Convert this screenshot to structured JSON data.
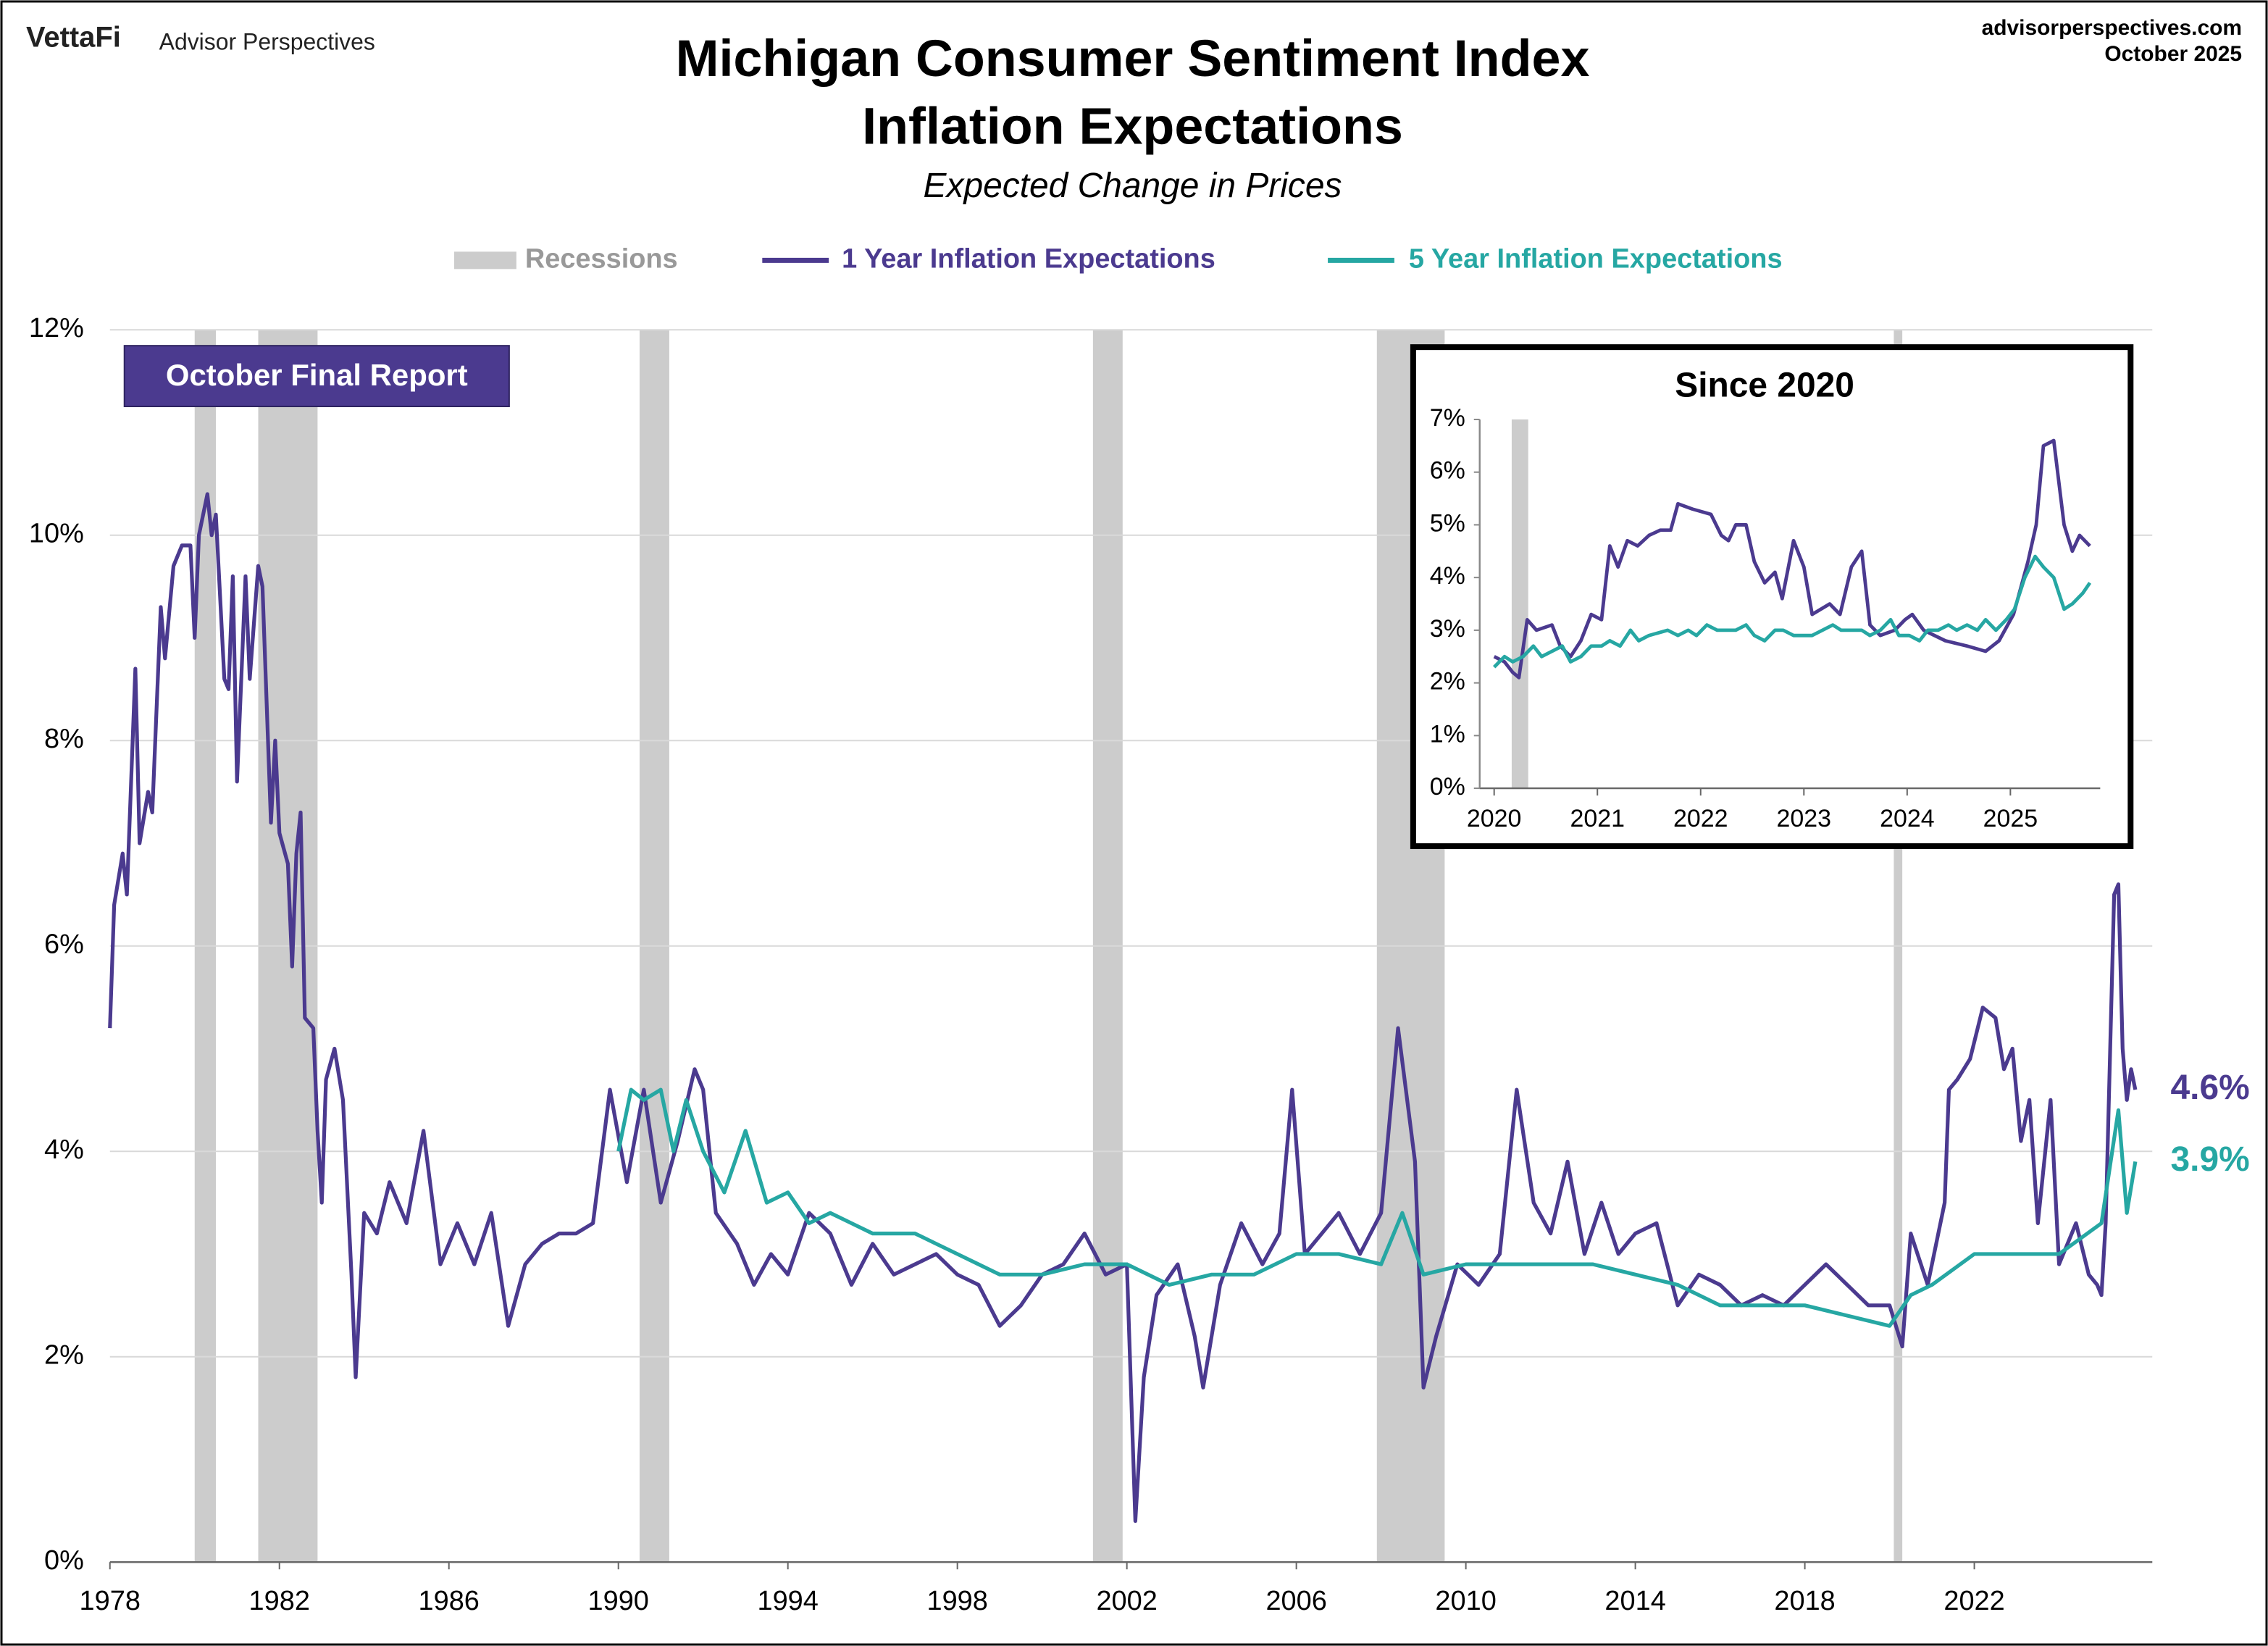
{
  "header": {
    "brand": "VettaFi",
    "publisher": "Advisor Perspectives",
    "site": "advisorperspectives.com",
    "date": "October 2025"
  },
  "chart_data": [
    {
      "type": "line",
      "title": [
        "Michigan Consumer Sentiment Index",
        "Inflation Expectations"
      ],
      "subtitle": "Expected Change in Prices",
      "annotation": "October Final Report",
      "xlim": [
        1978,
        2026.2
      ],
      "xticks": [
        1978,
        1982,
        1986,
        1990,
        1994,
        1998,
        2002,
        2006,
        2010,
        2014,
        2018,
        2022
      ],
      "ylim": [
        0,
        12
      ],
      "yticks": [
        {
          "value": 0,
          "label": "0%"
        },
        {
          "value": 2,
          "label": "2%"
        },
        {
          "value": 4,
          "label": "4%"
        },
        {
          "value": 6,
          "label": "6%"
        },
        {
          "value": 8,
          "label": "8%"
        },
        {
          "value": 10,
          "label": "10%"
        },
        {
          "value": 12,
          "label": "12%"
        }
      ],
      "grid": true,
      "recessions": {
        "name": "Recessions",
        "color": "#cccccc",
        "spans": [
          [
            1980.0,
            1980.5
          ],
          [
            1981.5,
            1982.9
          ],
          [
            1990.5,
            1991.2
          ],
          [
            2001.2,
            2001.9
          ],
          [
            2007.9,
            2009.5
          ],
          [
            2020.1,
            2020.3
          ]
        ]
      },
      "series": [
        {
          "name": "1 Year Inflation Expectations",
          "color": "#4b3a8f",
          "last_label": "4.6%",
          "x": [
            1978.0,
            1978.1,
            1978.3,
            1978.4,
            1978.6,
            1978.7,
            1978.9,
            1979.0,
            1979.2,
            1979.3,
            1979.5,
            1979.7,
            1979.9,
            1980.0,
            1980.1,
            1980.3,
            1980.4,
            1980.5,
            1980.7,
            1980.8,
            1980.9,
            1981.0,
            1981.2,
            1981.3,
            1981.5,
            1981.6,
            1981.8,
            1981.9,
            1982.0,
            1982.2,
            1982.3,
            1982.4,
            1982.5,
            1982.6,
            1982.8,
            1982.9,
            1983.0,
            1983.1,
            1983.3,
            1983.5,
            1983.7,
            1983.8,
            1984.0,
            1984.3,
            1984.6,
            1985.0,
            1985.4,
            1985.8,
            1986.2,
            1986.6,
            1987.0,
            1987.4,
            1987.8,
            1988.2,
            1988.6,
            1989.0,
            1989.4,
            1989.8,
            1990.2,
            1990.6,
            1991.0,
            1991.4,
            1991.8,
            1992.0,
            1992.3,
            1992.8,
            1993.2,
            1993.6,
            1994.0,
            1994.5,
            1995.0,
            1995.5,
            1996.0,
            1996.5,
            1997.0,
            1997.5,
            1998.0,
            1998.5,
            1999.0,
            1999.5,
            2000.0,
            2000.5,
            2001.0,
            2001.5,
            2002.0,
            2002.2,
            2002.4,
            2002.7,
            2003.2,
            2003.6,
            2003.8,
            2004.2,
            2004.7,
            2005.2,
            2005.6,
            2005.9,
            2006.2,
            2006.6,
            2007.0,
            2007.5,
            2008.0,
            2008.4,
            2008.8,
            2009.0,
            2009.3,
            2009.8,
            2010.3,
            2010.8,
            2011.2,
            2011.6,
            2012.0,
            2012.4,
            2012.8,
            2013.2,
            2013.6,
            2014.0,
            2014.5,
            2015.0,
            2015.5,
            2016.0,
            2016.5,
            2017.0,
            2017.5,
            2018.0,
            2018.5,
            2019.0,
            2019.5,
            2020.0,
            2020.3,
            2020.5,
            2020.9,
            2021.3,
            2021.4,
            2021.6,
            2021.9,
            2022.2,
            2022.5,
            2022.7,
            2022.9,
            2023.1,
            2023.3,
            2023.5,
            2023.8,
            2024.0,
            2024.4,
            2024.7,
            2024.9,
            2025.0,
            2025.1,
            2025.3,
            2025.4,
            2025.5,
            2025.6,
            2025.7,
            2025.8
          ],
          "values": [
            5.2,
            6.4,
            6.9,
            6.5,
            8.7,
            7.0,
            7.5,
            7.3,
            9.3,
            8.8,
            9.7,
            9.9,
            9.9,
            9.0,
            10.0,
            10.4,
            10.0,
            10.2,
            8.6,
            8.5,
            9.6,
            7.6,
            9.6,
            8.6,
            9.7,
            9.5,
            7.2,
            8.0,
            7.1,
            6.8,
            5.8,
            6.9,
            7.3,
            5.3,
            5.2,
            4.2,
            3.5,
            4.7,
            5.0,
            4.5,
            2.8,
            1.8,
            3.4,
            3.2,
            3.7,
            3.3,
            4.2,
            2.9,
            3.3,
            2.9,
            3.4,
            2.3,
            2.9,
            3.1,
            3.2,
            3.2,
            3.3,
            4.6,
            3.7,
            4.6,
            3.5,
            4.1,
            4.8,
            4.6,
            3.4,
            3.1,
            2.7,
            3.0,
            2.8,
            3.4,
            3.2,
            2.7,
            3.1,
            2.8,
            2.9,
            3.0,
            2.8,
            2.7,
            2.3,
            2.5,
            2.8,
            2.9,
            3.2,
            2.8,
            2.9,
            0.4,
            1.8,
            2.6,
            2.9,
            2.2,
            1.7,
            2.7,
            3.3,
            2.9,
            3.2,
            4.6,
            3.0,
            3.2,
            3.4,
            3.0,
            3.4,
            5.2,
            3.9,
            1.7,
            2.2,
            2.9,
            2.7,
            3.0,
            4.6,
            3.5,
            3.2,
            3.9,
            3.0,
            3.5,
            3.0,
            3.2,
            3.3,
            2.5,
            2.8,
            2.7,
            2.5,
            2.6,
            2.5,
            2.7,
            2.9,
            2.7,
            2.5,
            2.5,
            2.1,
            3.2,
            2.7,
            3.5,
            4.6,
            4.7,
            4.9,
            5.4,
            5.3,
            4.8,
            5.0,
            4.1,
            4.5,
            3.3,
            4.5,
            2.9,
            3.3,
            2.8,
            2.7,
            2.6,
            3.3,
            6.5,
            6.6,
            5.0,
            4.5,
            4.8,
            4.6
          ]
        },
        {
          "name": "5 Year Inflation Expectations",
          "color": "#26a7a3",
          "last_label": "3.9%",
          "x": [
            1990.0,
            1990.3,
            1990.6,
            1991.0,
            1991.3,
            1991.6,
            1992.0,
            1992.5,
            1993.0,
            1993.5,
            1994.0,
            1994.5,
            1995.0,
            1995.5,
            1996.0,
            1997.0,
            1997.5,
            1998.0,
            1998.5,
            1999.0,
            2000.0,
            2001.0,
            2002.0,
            2003.0,
            2004.0,
            2005.0,
            2006.0,
            2007.0,
            2008.0,
            2008.5,
            2009.0,
            2010.0,
            2011.0,
            2012.0,
            2013.0,
            2014.0,
            2015.0,
            2016.0,
            2017.0,
            2018.0,
            2019.0,
            2020.0,
            2020.5,
            2021.0,
            2022.0,
            2023.0,
            2024.0,
            2025.0,
            2025.4,
            2025.6,
            2025.8
          ],
          "values": [
            4.0,
            4.6,
            4.5,
            4.6,
            4.0,
            4.5,
            4.0,
            3.6,
            4.2,
            3.5,
            3.6,
            3.3,
            3.4,
            3.3,
            3.2,
            3.2,
            3.1,
            3.0,
            2.9,
            2.8,
            2.8,
            2.9,
            2.9,
            2.7,
            2.8,
            2.8,
            3.0,
            3.0,
            2.9,
            3.4,
            2.8,
            2.9,
            2.9,
            2.9,
            2.9,
            2.8,
            2.7,
            2.5,
            2.5,
            2.5,
            2.4,
            2.3,
            2.6,
            2.7,
            3.0,
            3.0,
            3.0,
            3.3,
            4.4,
            3.4,
            3.9
          ]
        }
      ]
    },
    {
      "type": "line",
      "title": "Since 2020",
      "xlim": [
        2019.86,
        2025.87
      ],
      "xticks": [
        2020,
        2021,
        2022,
        2023,
        2024,
        2025
      ],
      "ylim": [
        0,
        7
      ],
      "yticks": [
        {
          "value": 0,
          "label": "0%"
        },
        {
          "value": 1,
          "label": "1%"
        },
        {
          "value": 2,
          "label": "2%"
        },
        {
          "value": 3,
          "label": "3%"
        },
        {
          "value": 4,
          "label": "4%"
        },
        {
          "value": 5,
          "label": "5%"
        },
        {
          "value": 6,
          "label": "6%"
        },
        {
          "value": 7,
          "label": "7%"
        }
      ],
      "grid": false,
      "recessions": {
        "color": "#cccccc",
        "spans": [
          [
            2020.17,
            2020.33
          ]
        ]
      },
      "series": [
        {
          "color": "#4b3a8f",
          "x": [
            2020.0,
            2020.1,
            2020.18,
            2020.24,
            2020.32,
            2020.41,
            2020.56,
            2020.64,
            2020.74,
            2020.84,
            2020.94,
            2021.04,
            2021.12,
            2021.2,
            2021.29,
            2021.39,
            2021.5,
            2021.61,
            2021.71,
            2021.78,
            2021.92,
            2022.1,
            2022.2,
            2022.27,
            2022.34,
            2022.44,
            2022.52,
            2022.62,
            2022.72,
            2022.79,
            2022.9,
            2023.0,
            2023.08,
            2023.25,
            2023.35,
            2023.46,
            2023.56,
            2023.64,
            2023.74,
            2023.88,
            2023.98,
            2024.05,
            2024.16,
            2024.37,
            2024.58,
            2024.76,
            2024.89,
            2025.03,
            2025.17,
            2025.25,
            2025.32,
            2025.42,
            2025.52,
            2025.6,
            2025.67,
            2025.77
          ],
          "values": [
            2.5,
            2.4,
            2.2,
            2.1,
            3.2,
            3.0,
            3.1,
            2.7,
            2.5,
            2.8,
            3.3,
            3.2,
            4.6,
            4.2,
            4.7,
            4.6,
            4.8,
            4.9,
            4.9,
            5.4,
            5.3,
            5.2,
            4.8,
            4.7,
            5.0,
            5.0,
            4.3,
            3.9,
            4.1,
            3.6,
            4.7,
            4.2,
            3.3,
            3.5,
            3.3,
            4.2,
            4.5,
            3.1,
            2.9,
            3.0,
            3.2,
            3.3,
            3.0,
            2.8,
            2.7,
            2.6,
            2.8,
            3.3,
            4.3,
            5.0,
            6.5,
            6.6,
            5.0,
            4.5,
            4.8,
            4.6
          ]
        },
        {
          "color": "#26a7a3",
          "x": [
            2020.0,
            2020.1,
            2020.18,
            2020.28,
            2020.38,
            2020.46,
            2020.56,
            2020.66,
            2020.74,
            2020.84,
            2020.94,
            2021.04,
            2021.12,
            2021.22,
            2021.32,
            2021.4,
            2021.5,
            2021.68,
            2021.78,
            2021.88,
            2021.96,
            2022.06,
            2022.16,
            2022.34,
            2022.44,
            2022.52,
            2022.62,
            2022.72,
            2022.8,
            2022.9,
            2023.08,
            2023.28,
            2023.36,
            2023.56,
            2023.64,
            2023.74,
            2023.84,
            2023.92,
            2024.02,
            2024.12,
            2024.2,
            2024.3,
            2024.4,
            2024.48,
            2024.58,
            2024.68,
            2024.76,
            2024.86,
            2024.96,
            2025.04,
            2025.14,
            2025.24,
            2025.32,
            2025.42,
            2025.52,
            2025.6,
            2025.7,
            2025.77
          ],
          "values": [
            2.3,
            2.5,
            2.4,
            2.5,
            2.7,
            2.5,
            2.6,
            2.7,
            2.4,
            2.5,
            2.7,
            2.7,
            2.8,
            2.7,
            3.0,
            2.8,
            2.9,
            3.0,
            2.9,
            3.0,
            2.9,
            3.1,
            3.0,
            3.0,
            3.1,
            2.9,
            2.8,
            3.0,
            3.0,
            2.9,
            2.9,
            3.1,
            3.0,
            3.0,
            2.9,
            3.0,
            3.2,
            2.9,
            2.9,
            2.8,
            3.0,
            3.0,
            3.1,
            3.0,
            3.1,
            3.0,
            3.2,
            3.0,
            3.2,
            3.4,
            4.0,
            4.4,
            4.2,
            4.0,
            3.4,
            3.5,
            3.7,
            3.9
          ]
        }
      ]
    }
  ]
}
